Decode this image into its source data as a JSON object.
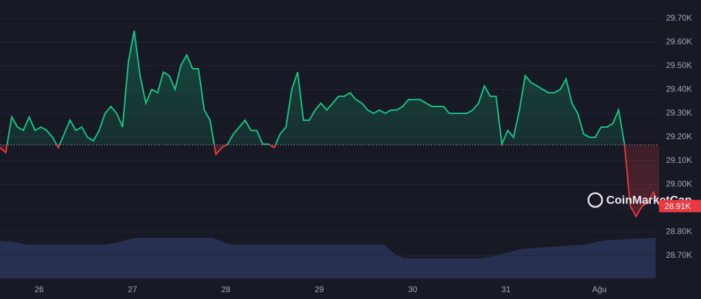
{
  "chart_data": {
    "type": "line",
    "x_labels": [
      "26",
      "27",
      "28",
      "29",
      "30",
      "31",
      "Ağu"
    ],
    "values": [
      29155,
      29135,
      29285,
      29242,
      29228,
      29285,
      29228,
      29242,
      29228,
      29199,
      29155,
      29213,
      29271,
      29228,
      29242,
      29199,
      29184,
      29228,
      29300,
      29329,
      29300,
      29242,
      29517,
      29648,
      29459,
      29343,
      29401,
      29387,
      29474,
      29459,
      29401,
      29503,
      29546,
      29488,
      29488,
      29314,
      29271,
      29126,
      29155,
      29170,
      29213,
      29242,
      29271,
      29228,
      29228,
      29170,
      29170,
      29155,
      29213,
      29242,
      29401,
      29474,
      29271,
      29271,
      29314,
      29343,
      29314,
      29343,
      29372,
      29372,
      29387,
      29358,
      29343,
      29314,
      29300,
      29314,
      29300,
      29314,
      29314,
      29329,
      29358,
      29358,
      29358,
      29343,
      29329,
      29329,
      29329,
      29300,
      29300,
      29300,
      29300,
      29314,
      29343,
      29416,
      29372,
      29372,
      29170,
      29228,
      29199,
      29314,
      29459,
      29430,
      29416,
      29401,
      29387,
      29387,
      29401,
      29445,
      29343,
      29300,
      29213,
      29199,
      29199,
      29242,
      29242,
      29257,
      29314,
      29170,
      28909,
      28865,
      28909,
      28923,
      28967,
      28909
    ],
    "up_color": "#16c784",
    "down_color": "#ea3943",
    "reference_value": 29167,
    "last_price_label": "28.91K",
    "watermark": "CoinMarketCap",
    "ylim": [
      28604,
      29778
    ],
    "yticks": [
      {
        "value": 28700,
        "label": "28.70K"
      },
      {
        "value": 28800,
        "label": "28.80K"
      },
      {
        "value": 28900,
        "label": "28.90K"
      },
      {
        "value": 29000,
        "label": "29.00K"
      },
      {
        "value": 29100,
        "label": "29.10K"
      },
      {
        "value": 29200,
        "label": "29.20K"
      },
      {
        "value": 29300,
        "label": "29.30K"
      },
      {
        "value": 29400,
        "label": "29.40K"
      },
      {
        "value": 29500,
        "label": "29.50K"
      },
      {
        "value": 29600,
        "label": "29.60K"
      },
      {
        "value": 29700,
        "label": "29.70K"
      }
    ],
    "grid": true
  }
}
